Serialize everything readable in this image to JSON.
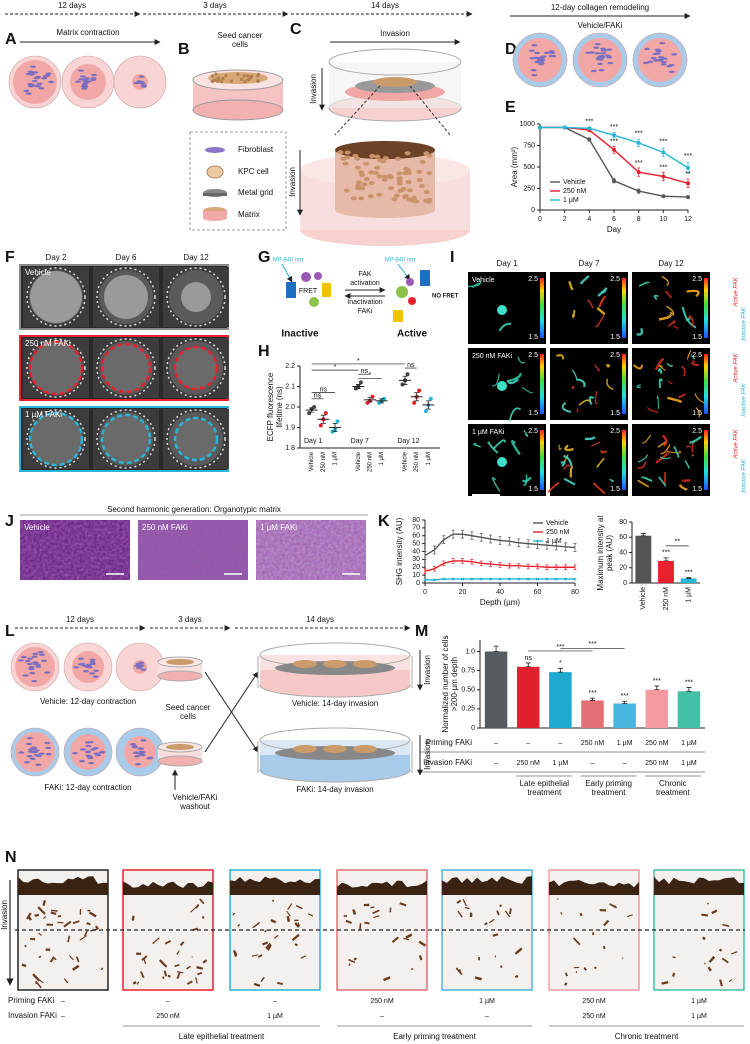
{
  "letters": [
    "A",
    "B",
    "C",
    "D",
    "E",
    "F",
    "G",
    "H",
    "I",
    "J",
    "K",
    "L",
    "M",
    "N"
  ],
  "timeline": [
    "12 days",
    "3 days",
    "14 days"
  ],
  "panel_a": {
    "title": "Matrix contraction"
  },
  "panel_b": {
    "title": "Seed cancer cells",
    "legend": [
      "Fibroblast",
      "KPC cell",
      "Metal grid",
      "Matrix"
    ]
  },
  "panel_c": {
    "title": "Invasion",
    "axis": "Invasion"
  },
  "panel_d": {
    "title": "12-day collagen remodeling",
    "subtitle": "Vehicle/FAKi"
  },
  "panel_f": {
    "columns": [
      "Day 2",
      "Day 6",
      "Day 12"
    ],
    "rows": [
      "Vehicle",
      "250 nM FAKi",
      "1 µM FAKi"
    ]
  },
  "panel_g": {
    "excitation": "MP 840 nm",
    "fret": "FRET",
    "no_fret": "NO FRET",
    "activation": "FAK activation",
    "inactivation": "Inactivation FAKi",
    "states": [
      "Inactive",
      "Active"
    ]
  },
  "panel_i": {
    "columns": [
      "Day 1",
      "Day 7",
      "Day 12"
    ],
    "rows": [
      "Vehicle",
      "250 nM FAKi",
      "1 µM FAKi"
    ],
    "scale": [
      "2.5",
      "1.5"
    ],
    "colorbar": [
      "Active FAK",
      "Inactive FAK"
    ]
  },
  "panel_j": {
    "title": "Second harmonic generation: Organotypic matrix",
    "images": [
      "Vehicle",
      "250 nM FAKi",
      "1 µM FAKi"
    ]
  },
  "panel_l": {
    "durations": [
      "12 days",
      "3 days",
      "14 days"
    ],
    "contraction": [
      "Vehicle: 12-day contraction",
      "FAKi: 12-day contraction"
    ],
    "seed": "Seed cancer cells",
    "invasion": [
      "Vehicle: 14-day invasion",
      "FAKi: 14-day invasion"
    ],
    "axis": "Invasion",
    "washout": "Vehicle/FAKi washout"
  },
  "panel_n": {
    "axis": "Invasion",
    "row_names": [
      "Priming FAKi",
      "Invasion FAKi"
    ],
    "priming": [
      "–",
      "–",
      "–",
      "250 nM",
      "1 µM",
      "250 nM",
      "1 µM"
    ],
    "invasion": [
      "–",
      "250 nM",
      "1 µM",
      "–",
      "–",
      "250 nM",
      "1 µM"
    ],
    "groups": [
      "Late epithelial treatment",
      "Early priming treatment",
      "Chronic treatment"
    ]
  },
  "chart_data": [
    {
      "type": "line",
      "xlabel": "Day",
      "ylabel": "Area (mm²)",
      "x": [
        0,
        2,
        4,
        6,
        8,
        10,
        12
      ],
      "xlim": [
        0,
        12
      ],
      "xticks": [
        0,
        2,
        4,
        6,
        8,
        10,
        12
      ],
      "ylim": [
        0,
        1000
      ],
      "yticks": [
        0,
        250,
        500,
        750,
        1000
      ],
      "legend": "lower left",
      "markers": true,
      "series": [
        {
          "name": "Vehicle",
          "color": "#555555",
          "values": [
            960,
            960,
            820,
            340,
            220,
            160,
            150
          ],
          "errors": [
            0,
            0,
            20,
            25,
            25,
            15,
            10
          ]
        },
        {
          "name": "250 nM",
          "color": "#e8212e",
          "values": [
            960,
            960,
            930,
            700,
            440,
            390,
            310
          ],
          "errors": [
            0,
            0,
            20,
            40,
            50,
            50,
            50
          ]
        },
        {
          "name": "1 µM",
          "color": "#27b5d8",
          "values": [
            960,
            960,
            950,
            870,
            780,
            670,
            490
          ],
          "errors": [
            0,
            0,
            15,
            30,
            40,
            50,
            60
          ]
        }
      ],
      "annotations": [
        {
          "x": 4,
          "y": 990,
          "text": "***"
        },
        {
          "x": 6,
          "y": 930,
          "text": "***"
        },
        {
          "x": 6,
          "y": 760,
          "text": "***"
        },
        {
          "x": 8,
          "y": 850,
          "text": "***"
        },
        {
          "x": 8,
          "y": 510,
          "text": "***"
        },
        {
          "x": 10,
          "y": 760,
          "text": "***"
        },
        {
          "x": 10,
          "y": 460,
          "text": "***"
        },
        {
          "x": 12,
          "y": 590,
          "text": "***"
        },
        {
          "x": 12,
          "y": 380,
          "text": "**"
        }
      ]
    },
    {
      "type": "dot",
      "ylabel": "ECFP fluorescence lifetime (ns)",
      "groups": [
        "Day 1",
        "Day 7",
        "Day 12"
      ],
      "categories": [
        "Vehicle",
        "250 nM",
        "1 µM"
      ],
      "ylim": [
        1.8,
        2.2
      ],
      "yticks": [
        1.8,
        1.9,
        {
          "value": 2,
          "label": "2.0"
        },
        2.1,
        2.2
      ],
      "series": [
        {
          "name": "Vehicle",
          "color": "#444444",
          "values": [
            1.985,
            2.1,
            2.13
          ],
          "errors": [
            0.01,
            0.01,
            0.02
          ],
          "points": [
            [
              1.97,
              1.99,
              2.0
            ],
            [
              2.09,
              2.1,
              2.12
            ],
            [
              2.11,
              2.13,
              2.16
            ]
          ]
        },
        {
          "name": "250 nM",
          "color": "#e8212e",
          "values": [
            1.94,
            2.035,
            2.05
          ],
          "errors": [
            0.02,
            0.01,
            0.02
          ],
          "points": [
            [
              1.91,
              1.94,
              1.97
            ],
            [
              2.02,
              2.03,
              2.05
            ],
            [
              2.02,
              2.05,
              2.08
            ]
          ]
        },
        {
          "name": "1 µM",
          "color": "#27b5d8",
          "values": [
            1.9,
            2.03,
            2.01
          ],
          "errors": [
            0.02,
            0.01,
            0.02
          ],
          "points": [
            [
              1.88,
              1.89,
              1.93
            ],
            [
              2.02,
              2.03,
              2.04
            ],
            [
              1.98,
              2.01,
              2.04
            ]
          ]
        }
      ],
      "annotations": [
        {
          "a": [
            0,
            0
          ],
          "b": [
            0,
            1
          ],
          "y": 2.04,
          "text": "ns"
        },
        {
          "a": [
            0,
            0
          ],
          "b": [
            0,
            2
          ],
          "y": 2.07,
          "text": "ns"
        },
        {
          "a": [
            1,
            0
          ],
          "b": [
            1,
            2
          ],
          "y": 2.14,
          "text": "*"
        },
        {
          "a": [
            1,
            0
          ],
          "b": [
            1,
            1
          ],
          "y": 2.16,
          "text": "ns"
        },
        {
          "a": [
            0,
            0
          ],
          "b": [
            1,
            0
          ],
          "y": 2.18,
          "text": "*"
        },
        {
          "a": [
            2,
            0
          ],
          "b": [
            2,
            1
          ],
          "y": 2.19,
          "text": "ns"
        },
        {
          "a": [
            0,
            0
          ],
          "b": [
            2,
            0
          ],
          "y": 2.21,
          "text": "*"
        }
      ]
    },
    {
      "type": "line",
      "xlabel": "Depth (µm)",
      "ylabel": "SHG intensity (AU)",
      "x": [
        0,
        5,
        10,
        15,
        20,
        25,
        30,
        35,
        40,
        45,
        50,
        55,
        60,
        65,
        70,
        75,
        80
      ],
      "xlim": [
        0,
        80
      ],
      "xticks": [
        0,
        20,
        40,
        60,
        80
      ],
      "ylim": [
        0,
        80
      ],
      "yticks": [
        0,
        10,
        20,
        30,
        40,
        50,
        60,
        70,
        80
      ],
      "legend": "upper right",
      "markers": false,
      "series": [
        {
          "name": "Vehicle",
          "color": "#555555",
          "values": [
            35,
            42,
            55,
            62,
            62,
            60,
            58,
            56,
            54,
            53,
            51,
            50,
            49,
            48,
            47,
            46,
            45
          ],
          "errors": [
            5,
            5,
            5,
            5,
            5,
            5,
            5,
            5,
            5,
            5,
            5,
            5,
            5,
            5,
            5,
            5,
            5
          ]
        },
        {
          "name": "250 nM",
          "color": "#e8212e",
          "values": [
            15,
            18,
            25,
            28,
            28,
            27,
            25,
            24,
            23,
            22,
            22,
            21,
            21,
            20,
            20,
            20,
            20
          ],
          "errors": [
            3,
            3,
            3,
            3,
            3,
            3,
            3,
            3,
            3,
            3,
            3,
            3,
            3,
            3,
            3,
            3,
            3
          ]
        },
        {
          "name": "1 µM",
          "color": "#27b5d8",
          "values": [
            4,
            4,
            5,
            5,
            5,
            5,
            5,
            5,
            5,
            5,
            5,
            5,
            5,
            5,
            5,
            5,
            5
          ],
          "errors": [
            1,
            1,
            1,
            1,
            1,
            1,
            1,
            1,
            1,
            1,
            1,
            1,
            1,
            1,
            1,
            1,
            1
          ]
        }
      ]
    },
    {
      "type": "bar",
      "ylabel": "Maximum intensity at peak (AU)",
      "categories": [
        "Vehicle",
        "250 nM",
        "1 µM"
      ],
      "values": [
        62,
        29,
        6
      ],
      "errors": [
        3,
        4,
        1
      ],
      "colors": [
        "#555555",
        "#e8212e",
        "#27b5d8"
      ],
      "ylim": [
        0,
        80
      ],
      "yticks": [
        0,
        20,
        40,
        60,
        80
      ],
      "significance": [
        null,
        "***",
        "***"
      ],
      "comparisons": [
        {
          "bars": [
            1,
            2
          ],
          "text": "**"
        }
      ]
    },
    {
      "type": "bar",
      "ylabel": "Normalized number of cells >200-µm depth",
      "values": [
        1,
        0.8,
        0.73,
        0.36,
        0.32,
        0.5,
        0.48
      ],
      "errors": [
        0.07,
        0.05,
        0.05,
        0.03,
        0.03,
        0.05,
        0.05
      ],
      "colors": [
        "#555b5e",
        "#e31e2d",
        "#1ea9cf",
        "#e37074",
        "#49b6e0",
        "#f59aa0",
        "#44c0a6"
      ],
      "ylim": [
        0,
        1.15
      ],
      "yticks": [
        0,
        0.25,
        {
          "value": 0.5,
          "label": "0.50"
        },
        0.75,
        {
          "value": 1,
          "label": "1.0"
        }
      ],
      "significance": [
        null,
        "ns",
        "*",
        "***",
        "***",
        "***",
        "***"
      ],
      "comparisons": [
        {
          "bars": [
            1,
            3
          ],
          "text": "***"
        },
        {
          "bars": [
            2,
            4
          ],
          "text": "***"
        }
      ],
      "row_names": [
        "Priming FAKi",
        "Invasion FAKi"
      ],
      "priming": [
        "–",
        "–",
        "–",
        "250 nM",
        "1 µM",
        "250 nM",
        "1 µM"
      ],
      "invasion": [
        "–",
        "250 nM",
        "1 µM",
        "–",
        "–",
        "250 nM",
        "1 µM"
      ],
      "groups": [
        "Late epithelial treatment",
        "Early priming treatment",
        "Chronic treatment"
      ]
    }
  ]
}
